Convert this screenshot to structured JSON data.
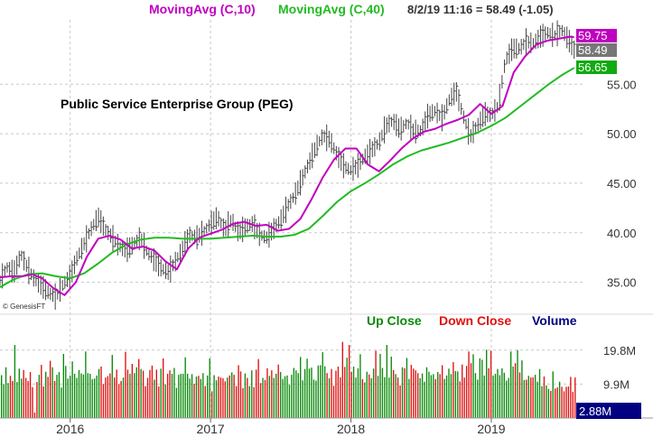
{
  "header": {
    "ma10_label": "MovingAvg (C,10)",
    "ma40_label": "MovingAvg (C,40)",
    "quote": "8/2/19 11:16 = 58.49 (-1.05)"
  },
  "title": "Public Service Enterprise Group (PEG)",
  "credit": "© GenesisFT",
  "volume_legend": {
    "up": "Up Close",
    "down": "Down Close",
    "volume": "Volume"
  },
  "colors": {
    "up": "#0a8a0a",
    "down": "#e01010",
    "volume": "#000080",
    "ma10": "#c000c0",
    "ma40": "#22bb22",
    "price_bar": "#444444",
    "last_price_tag": "#777777",
    "grid": "#c8c8c8"
  },
  "chart_data": [
    {
      "type": "line",
      "name": "price",
      "title": "Public Service Enterprise Group (PEG)",
      "ylim": [
        32.5,
        61.5
      ],
      "yticks": [
        35.0,
        40.0,
        45.0,
        50.0,
        55.0
      ],
      "ytick_labels": [
        "35.00",
        "40.00",
        "45.00",
        "50.00",
        "55.00"
      ],
      "xlim": [
        2015.5,
        2019.65
      ],
      "xticks": [
        2016,
        2017,
        2018,
        2019
      ],
      "xtick_labels": [
        "2016",
        "2017",
        "2018",
        "2019"
      ],
      "grid": true,
      "last_values": {
        "ma10": "59.75",
        "close": "58.49",
        "ma40": "56.65"
      },
      "series": [
        {
          "name": "MovingAvg (C,10)",
          "x": [
            2015.5,
            2015.58,
            2015.66,
            2015.73,
            2015.8,
            2015.88,
            2015.96,
            2016.04,
            2016.12,
            2016.2,
            2016.28,
            2016.36,
            2016.44,
            2016.52,
            2016.6,
            2016.68,
            2016.76,
            2016.84,
            2016.92,
            2017.0,
            2017.08,
            2017.16,
            2017.24,
            2017.32,
            2017.4,
            2017.48,
            2017.56,
            2017.64,
            2017.72,
            2017.8,
            2017.88,
            2017.96,
            2018.04,
            2018.12,
            2018.2,
            2018.28,
            2018.36,
            2018.44,
            2018.52,
            2018.6,
            2018.68,
            2018.76,
            2018.84,
            2018.92,
            2019.0,
            2019.08,
            2019.16,
            2019.24,
            2019.32,
            2019.4,
            2019.48,
            2019.56,
            2019.59
          ],
          "values": [
            35.5,
            35.6,
            35.6,
            35.8,
            35.4,
            34.4,
            33.7,
            35.0,
            37.6,
            39.4,
            39.7,
            39.3,
            38.4,
            38.6,
            38.2,
            37.1,
            36.3,
            38.4,
            39.5,
            39.9,
            40.3,
            40.9,
            41.1,
            40.7,
            40.8,
            40.2,
            40.4,
            41.4,
            43.4,
            45.6,
            47.4,
            48.5,
            48.5,
            46.9,
            46.2,
            47.3,
            48.5,
            49.5,
            50.2,
            50.5,
            51.0,
            51.4,
            51.9,
            53.0,
            52.0,
            52.8,
            56.2,
            57.8,
            59.0,
            59.4,
            59.6,
            59.8,
            59.75
          ]
        },
        {
          "name": "MovingAvg (C,40)",
          "x": [
            2015.5,
            2015.6,
            2015.7,
            2015.8,
            2015.9,
            2016.0,
            2016.1,
            2016.2,
            2016.3,
            2016.4,
            2016.5,
            2016.6,
            2016.7,
            2016.8,
            2016.9,
            2017.0,
            2017.1,
            2017.2,
            2017.3,
            2017.4,
            2017.5,
            2017.6,
            2017.7,
            2017.8,
            2017.9,
            2018.0,
            2018.1,
            2018.2,
            2018.3,
            2018.4,
            2018.5,
            2018.6,
            2018.7,
            2018.8,
            2018.9,
            2019.0,
            2019.1,
            2019.2,
            2019.3,
            2019.4,
            2019.5,
            2019.59
          ],
          "values": [
            34.5,
            35.3,
            35.8,
            35.9,
            35.6,
            35.4,
            35.9,
            36.9,
            38.0,
            38.8,
            39.3,
            39.5,
            39.5,
            39.4,
            39.4,
            39.4,
            39.5,
            39.6,
            39.7,
            39.6,
            39.6,
            39.8,
            40.4,
            41.7,
            43.1,
            44.2,
            45.0,
            45.9,
            46.9,
            47.7,
            48.3,
            48.7,
            49.1,
            49.6,
            50.1,
            50.8,
            51.6,
            52.7,
            53.8,
            54.9,
            55.9,
            56.65
          ]
        },
        {
          "name": "price",
          "x": [
            2015.5,
            2015.55,
            2015.6,
            2015.65,
            2015.7,
            2015.75,
            2015.8,
            2015.85,
            2015.9,
            2015.95,
            2016.0,
            2016.05,
            2016.1,
            2016.15,
            2016.2,
            2016.25,
            2016.3,
            2016.35,
            2016.4,
            2016.45,
            2016.5,
            2016.55,
            2016.6,
            2016.65,
            2016.7,
            2016.75,
            2016.8,
            2016.85,
            2016.9,
            2016.95,
            2017.0,
            2017.05,
            2017.1,
            2017.15,
            2017.2,
            2017.25,
            2017.3,
            2017.35,
            2017.4,
            2017.45,
            2017.5,
            2017.55,
            2017.6,
            2017.65,
            2017.7,
            2017.75,
            2017.8,
            2017.85,
            2017.9,
            2017.95,
            2018.0,
            2018.05,
            2018.1,
            2018.15,
            2018.2,
            2018.25,
            2018.3,
            2018.35,
            2018.4,
            2018.45,
            2018.5,
            2018.55,
            2018.6,
            2018.65,
            2018.7,
            2018.75,
            2018.8,
            2018.85,
            2018.9,
            2018.95,
            2019.0,
            2019.05,
            2019.1,
            2019.15,
            2019.2,
            2019.25,
            2019.3,
            2019.35,
            2019.4,
            2019.45,
            2019.5,
            2019.55,
            2019.59
          ],
          "values": [
            35.2,
            36.5,
            36.0,
            37.8,
            36.3,
            35.2,
            34.6,
            33.9,
            33.5,
            34.8,
            35.6,
            37.5,
            38.9,
            40.4,
            41.6,
            40.3,
            39.5,
            38.6,
            38.2,
            38.8,
            39.5,
            38.0,
            37.2,
            36.4,
            36.0,
            37.1,
            38.4,
            39.8,
            39.5,
            40.1,
            40.9,
            41.6,
            40.3,
            41.3,
            40.0,
            40.6,
            40.9,
            39.8,
            39.5,
            40.4,
            41.3,
            42.7,
            43.8,
            45.4,
            47.0,
            48.6,
            49.8,
            49.4,
            47.9,
            46.7,
            46.3,
            46.8,
            47.7,
            48.4,
            49.1,
            50.8,
            51.3,
            50.4,
            51.1,
            50.2,
            50.3,
            51.9,
            52.3,
            51.6,
            53.4,
            54.3,
            51.8,
            49.7,
            50.8,
            52.0,
            51.9,
            52.8,
            57.4,
            58.6,
            58.6,
            59.3,
            59.1,
            59.8,
            60.2,
            59.9,
            60.5,
            59.5,
            58.49
          ]
        }
      ]
    },
    {
      "type": "bar",
      "name": "volume",
      "ylim": [
        0,
        25
      ],
      "yticks": [
        9.9,
        19.8
      ],
      "ytick_labels": [
        "9.9M",
        "19.8M"
      ],
      "last_value": "2.88M",
      "series": [
        {
          "name": "Volume",
          "values": [
            12.5,
            9.9,
            14.8,
            10.2,
            12.3,
            10.8,
            21.3,
            10.5,
            14.4,
            11.5,
            14.0,
            11.7,
            10.8,
            13.4,
            9.0,
            1.6,
            10.5,
            12.6,
            15.5,
            9.2,
            13.5,
            12.0,
            16.7,
            14.8,
            10.8,
            12.6,
            13.4,
            8.9,
            18.7,
            15.2,
            11.5,
            12.4,
            16.5,
            12.9,
            11.7,
            14.0,
            13.0,
            12.7,
            19.4,
            13.1,
            12.9,
            11.3,
            11.5,
            12.4,
            14.3,
            15.0,
            9.9,
            11.8,
            12.2,
            13.0,
            18.4,
            11.8,
            14.1,
            9.9,
            10.8,
            11.8,
            19.3,
            14.1,
            12.9,
            15.8,
            13.1,
            14.8,
            17.2,
            14.3,
            13.8,
            9.3,
            11.7,
            14.0,
            15.3,
            11.2,
            14.1,
            9.2,
            14.4,
            17.4,
            9.8,
            12.9,
            13.9,
            12.9,
            14.6,
            8.8,
            12.6,
            12.9,
            12.9,
            17.7,
            12.9,
            11.5,
            12.8,
            10.0,
            12.1,
            12.3,
            11.4,
            13.1,
            9.3,
            12.4,
            17.4,
            7.8,
            12.5,
            11.0,
            12.1,
            11.8,
            11.6,
            10.7,
            11.8,
            12.4,
            13.3,
            12.6,
            9.3,
            15.4,
            13.6,
            8.7,
            13.0,
            11.7,
            9.3,
            13.9,
            9.0,
            14.1,
            17.2,
            10.2,
            11.7,
            11.1,
            14.5,
            12.3,
            13.9,
            11.7,
            12.9,
            15.6,
            13.4,
            11.4,
            12.2,
            12.4,
            9.7,
            12.6,
            14.6,
            13.9,
            13.1,
            17.8,
            11.0,
            14.3,
            17.3,
            14.4,
            14.7,
            11.2,
            10.9,
            15.3,
            15.4,
            19.2,
            15.1,
            13.1,
            11.6,
            14.3,
            9.4,
            13.8,
            15.0,
            11.9,
            22.2,
            14.9,
            17.6,
            21.3,
            13.5,
            15.0,
            11.8,
            14.5,
            18.6,
            11.3,
            10.4,
            13.5,
            12.7,
            11.6,
            14.4,
            19.6,
            12.3,
            18.7,
            14.6,
            11.9,
            21.3,
            11.8,
            17.9,
            14.0,
            12.8,
            11.8,
            9.5,
            14.8,
            14.5,
            17.5,
            11.4,
            15.5,
            14.4,
            13.9,
            13.1,
            11.6,
            13.0,
            10.6,
            14.8,
            13.5,
            12.5,
            12.8,
            11.3,
            13.4,
            12.8,
            15.4,
            11.4,
            12.4,
            14.4,
            12.8,
            16.3,
            13.7,
            13.6,
            10.7,
            15.6,
            11.8,
            15.2,
            19.4,
            16.0,
            18.6,
            13.1,
            11.2,
            17.4,
            17.0,
            12.4,
            19.9,
            14.5,
            19.6,
            12.4,
            12.9,
            14.3,
            12.5,
            14.5,
            13.2,
            10.9,
            11.7,
            19.4,
            15.0,
            16.0,
            19.8,
            13.3,
            16.8,
            11.1,
            11.2,
            12.3,
            11.8,
            11.9,
            12.6,
            10.6,
            14.3,
            9.3,
            12.1,
            9.5,
            8.5,
            7.9,
            13.6,
            8.6,
            8.9,
            10.6,
            9.1,
            7.8,
            9.1,
            9.2,
            12.0,
            7.6,
            11.8,
            2.9
          ]
        }
      ]
    }
  ]
}
